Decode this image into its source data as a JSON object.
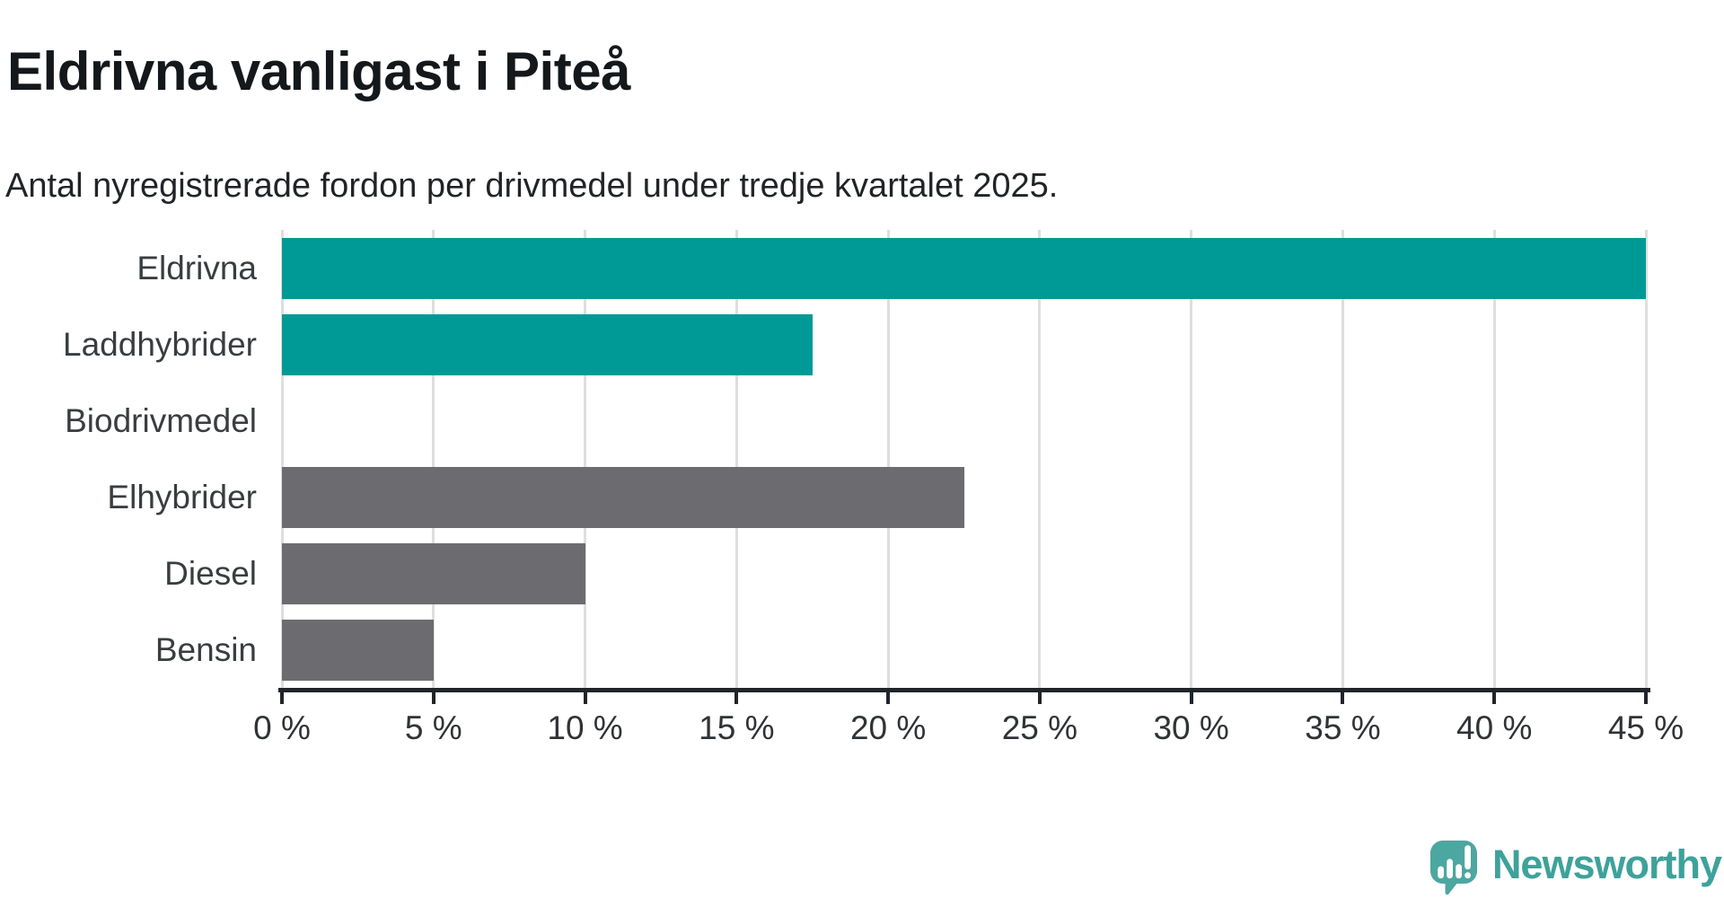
{
  "header": {
    "title": "Eldrivna vanligast i Piteå",
    "subtitle": "Antal nyregistrerade fordon per drivmedel under tredje kvartalet 2025."
  },
  "chart_data": {
    "type": "bar",
    "orientation": "horizontal",
    "title": "Eldrivna vanligast i Piteå",
    "subtitle": "Antal nyregistrerade fordon per drivmedel under tredje kvartalet 2025.",
    "categories": [
      "Eldrivna",
      "Laddhybrider",
      "Biodrivmedel",
      "Elhybrider",
      "Diesel",
      "Bensin"
    ],
    "values": [
      45,
      17.5,
      0,
      22.5,
      10,
      5
    ],
    "value_unit": "%",
    "bar_colors": [
      "#009a96",
      "#009a96",
      "#009a96",
      "#6b6b70",
      "#6b6b70",
      "#6b6b70"
    ],
    "accent_color": "#009a96",
    "muted_color": "#6b6b70",
    "xlim": [
      0,
      45
    ],
    "x_ticks": [
      0,
      5,
      10,
      15,
      20,
      25,
      30,
      35,
      40,
      45
    ],
    "x_tick_labels": [
      "0 %",
      "5 %",
      "10 %",
      "15 %",
      "20 %",
      "25 %",
      "30 %",
      "35 %",
      "40 %",
      "45 %"
    ],
    "grid": true,
    "legend": false,
    "gridline_color": "#dedede",
    "axis_color": "#212529"
  },
  "footer": {
    "brand": "Newsworthy",
    "brand_color": "#3ea29a",
    "icon": "newsworthy-speech-bubble-bar-chart-icon",
    "icon_color": "#4ca7a0"
  }
}
